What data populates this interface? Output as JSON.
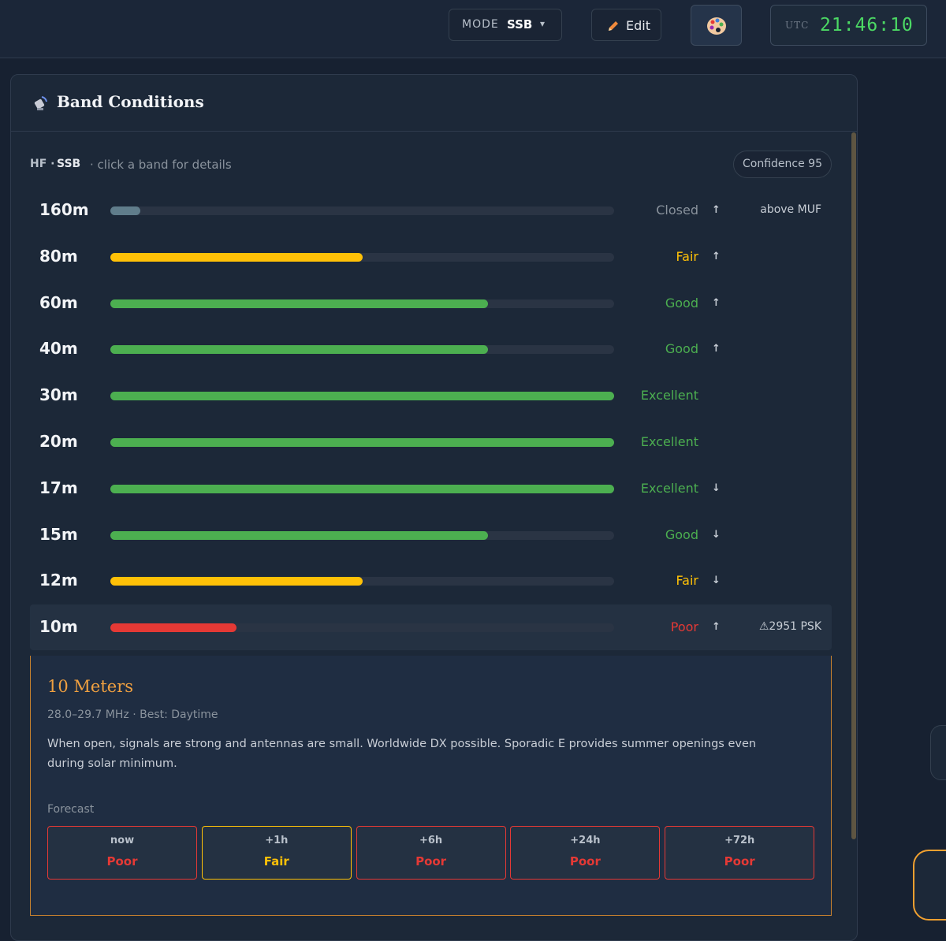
{
  "header": {
    "mode_label": "MODE",
    "mode": "SSB",
    "mode_caret": "▾",
    "edit": "Edit",
    "utc_label": "UTC",
    "utc_time": "21:46:10"
  },
  "panel": {
    "title": "Band Conditions",
    "scope_prefix": "HF ·",
    "scope_mode": "SSB",
    "hint": "· click a band for details",
    "confidence": "Confidence 95"
  },
  "bands": [
    {
      "name": "160m",
      "level": 6,
      "status": "Closed",
      "color": "#607d8b",
      "status_color": "#8a939d",
      "trend": "↑",
      "note": "above MUF"
    },
    {
      "name": "80m",
      "level": 50,
      "status": "Fair",
      "color": "#ffc107",
      "status_color": "#ffc107",
      "trend": "↑"
    },
    {
      "name": "60m",
      "level": 75,
      "status": "Good",
      "color": "#4caf50",
      "status_color": "#4caf50",
      "trend": "↑"
    },
    {
      "name": "40m",
      "level": 75,
      "status": "Good",
      "color": "#4caf50",
      "status_color": "#4caf50",
      "trend": "↑"
    },
    {
      "name": "30m",
      "level": 100,
      "status": "Excellent",
      "color": "#4caf50",
      "status_color": "#4caf50"
    },
    {
      "name": "20m",
      "level": 100,
      "status": "Excellent",
      "color": "#4caf50",
      "status_color": "#4caf50"
    },
    {
      "name": "17m",
      "level": 100,
      "status": "Excellent",
      "color": "#4caf50",
      "status_color": "#4caf50",
      "trend": "↓"
    },
    {
      "name": "15m",
      "level": 75,
      "status": "Good",
      "color": "#4caf50",
      "status_color": "#4caf50",
      "trend": "↓"
    },
    {
      "name": "12m",
      "level": 50,
      "status": "Fair",
      "color": "#ffc107",
      "status_color": "#ffc107",
      "trend": "↓"
    },
    {
      "name": "10m",
      "level": 25,
      "status": "Poor",
      "color": "#e53935",
      "status_color": "#e53935",
      "trend": "↑",
      "note": "⚠2951 PSK"
    }
  ],
  "detail": {
    "title": "10 Meters",
    "subtitle": "28.0–29.7 MHz · Best: Daytime",
    "description": "When open, signals are strong and antennas are small. Worldwide DX possible. Sporadic E provides summer openings even during solar minimum.",
    "forecast_label": "Forecast",
    "forecast": [
      {
        "time": "now",
        "status": "Poor",
        "color": "#e53935"
      },
      {
        "time": "+1h",
        "status": "Fair",
        "color": "#ffc107"
      },
      {
        "time": "+6h",
        "status": "Poor",
        "color": "#e53935"
      },
      {
        "time": "+24h",
        "status": "Poor",
        "color": "#e53935"
      },
      {
        "time": "+72h",
        "status": "Poor",
        "color": "#e53935"
      }
    ]
  }
}
